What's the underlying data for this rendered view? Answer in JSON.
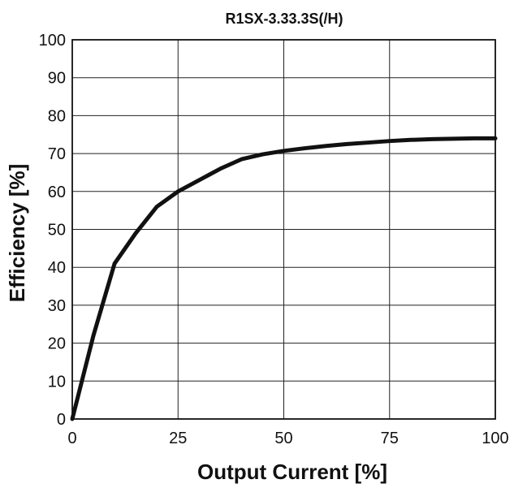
{
  "chart_data": {
    "type": "line",
    "title": "R1SX-3.33.3S(/H)",
    "xlabel": "Output Current [%]",
    "ylabel": "Efficiency [%]",
    "xlim": [
      0,
      100
    ],
    "ylim": [
      0,
      100
    ],
    "x_ticks": [
      0,
      25,
      50,
      75,
      100
    ],
    "y_ticks": [
      0,
      10,
      20,
      30,
      40,
      50,
      60,
      70,
      80,
      90,
      100
    ],
    "grid": true,
    "legend": "none",
    "series": [
      {
        "color": "#111111",
        "x": [
          0,
          5,
          10,
          15,
          20,
          25,
          30,
          35,
          40,
          45,
          50,
          55,
          60,
          65,
          70,
          75,
          80,
          85,
          90,
          95,
          100
        ],
        "y": [
          0,
          22,
          41,
          49,
          56,
          60,
          63,
          66,
          68.5,
          69.8,
          70.7,
          71.4,
          72.0,
          72.5,
          72.9,
          73.3,
          73.6,
          73.8,
          73.9,
          74.0,
          74.0
        ]
      }
    ]
  }
}
